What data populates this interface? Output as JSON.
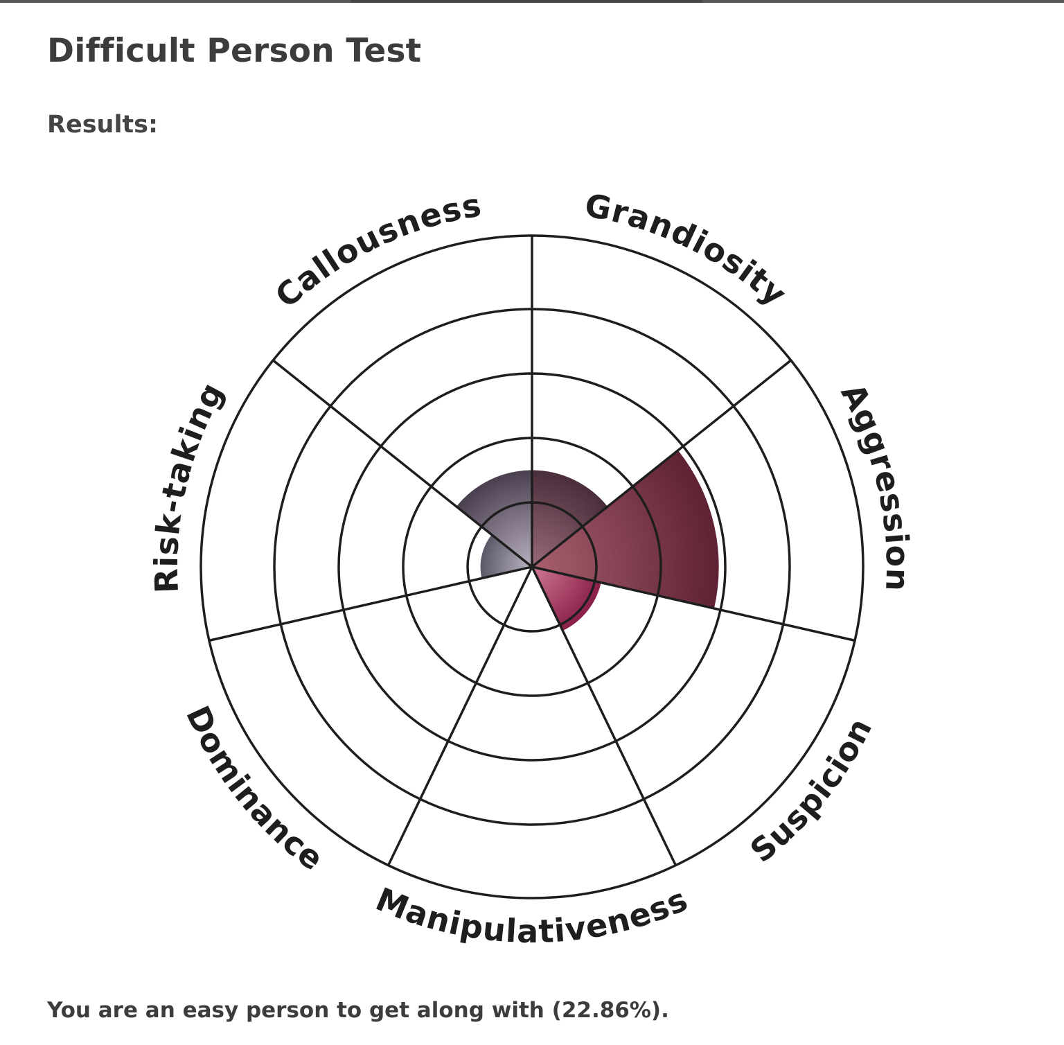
{
  "page": {
    "title": "Difficult Person Test",
    "results_label": "Results:",
    "summary": "You are an easy person to get along with (22.86%)."
  },
  "chart_data": {
    "type": "polar-area",
    "rings": 5,
    "max": 5,
    "categories": [
      "Grandiosity",
      "Aggression",
      "Suspicion",
      "Manipulativeness",
      "Dominance",
      "Risk-taking",
      "Callousness"
    ],
    "values": [
      1.5,
      2.9,
      1.1,
      0,
      0,
      0.8,
      1.5
    ],
    "colors": {
      "Grandiosity": [
        "#9a6b7c",
        "#4a2e3b"
      ],
      "Aggression": [
        "#a9606f",
        "#5e2233"
      ],
      "Suspicion": [
        "#d07a97",
        "#8a1f48"
      ],
      "Manipulativeness": [
        "#b0a8b8",
        "#6f6a78"
      ],
      "Dominance": [
        "#b0a8b8",
        "#6f6a78"
      ],
      "Risk-taking": [
        "#bdb6c4",
        "#5b5868"
      ],
      "Callousness": [
        "#b8afc0",
        "#4a3f4e"
      ]
    }
  }
}
